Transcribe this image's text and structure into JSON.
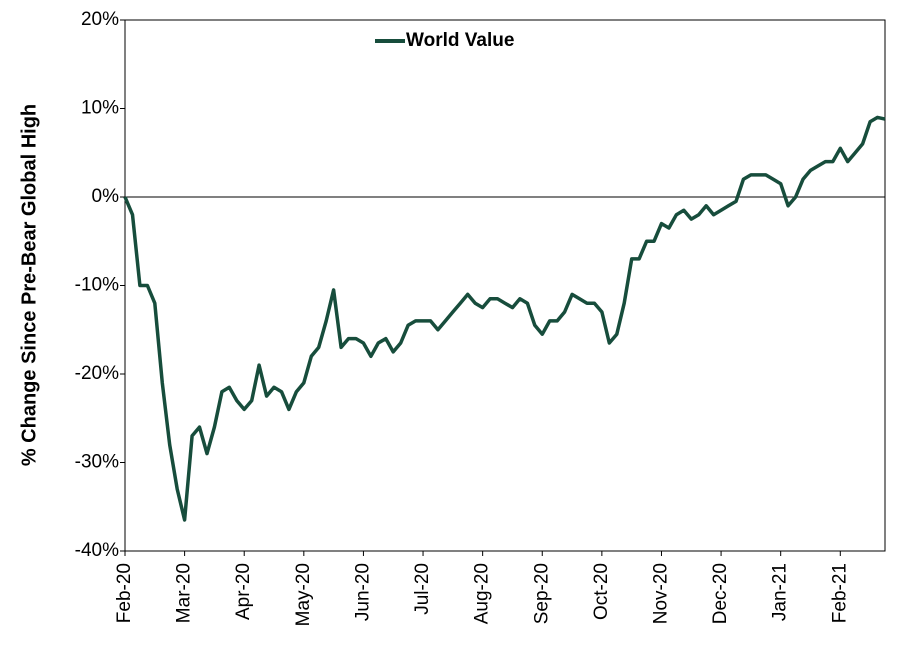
{
  "chart_data": {
    "type": "line",
    "y_label": "% Change Since Pre-Bear Global High",
    "categories": [
      "Feb-20",
      null,
      null,
      null,
      null,
      null,
      null,
      null,
      "Mar-20",
      null,
      null,
      null,
      null,
      null,
      null,
      null,
      "Apr-20",
      null,
      null,
      null,
      null,
      null,
      null,
      null,
      "May-20",
      null,
      null,
      null,
      null,
      null,
      null,
      null,
      "Jun-20",
      null,
      null,
      null,
      null,
      null,
      null,
      null,
      "Jul-20",
      null,
      null,
      null,
      null,
      null,
      null,
      null,
      "Aug-20",
      null,
      null,
      null,
      null,
      null,
      null,
      null,
      "Sep-20",
      null,
      null,
      null,
      null,
      null,
      null,
      null,
      "Oct-20",
      null,
      null,
      null,
      null,
      null,
      null,
      null,
      "Nov-20",
      null,
      null,
      null,
      null,
      null,
      null,
      null,
      "Dec-20",
      null,
      null,
      null,
      null,
      null,
      null,
      null,
      "Jan-21",
      null,
      null,
      null,
      null,
      null,
      null,
      null,
      "Feb-21",
      null,
      null,
      null,
      null,
      null,
      null
    ],
    "series": [
      {
        "name": "World Value",
        "color": "#174d3c",
        "values": [
          0,
          -2,
          -10,
          -10,
          -12,
          -21,
          -28,
          -33,
          -36.5,
          -27,
          -26,
          -29,
          -26,
          -22,
          -21.5,
          -23,
          -24,
          -23,
          -19,
          -22.5,
          -21.5,
          -22,
          -24,
          -22,
          -21,
          -18,
          -17,
          -14,
          -10.5,
          -17,
          -16,
          -16,
          -16.5,
          -18,
          -16.5,
          -16,
          -17.5,
          -16.5,
          -14.5,
          -14,
          -14,
          -14,
          -15,
          -14,
          -13,
          -12,
          -11,
          -12,
          -12.5,
          -11.5,
          -11.5,
          -12,
          -12.5,
          -11.5,
          -12,
          -14.5,
          -15.5,
          -14,
          -14,
          -13,
          -11,
          -11.5,
          -12,
          -12,
          -13,
          -16.5,
          -15.5,
          -12,
          -7,
          -7,
          -5,
          -5,
          -3,
          -3.5,
          -2,
          -1.5,
          -2.5,
          -2,
          -1,
          -2,
          -1.5,
          -1,
          -0.5,
          2,
          2.5,
          2.5,
          2.5,
          2,
          1.5,
          -1,
          0,
          2,
          3,
          3.5,
          4,
          4,
          5.5,
          4,
          5,
          6,
          8.5,
          9,
          8.8
        ]
      }
    ],
    "ylim": [
      -40,
      20
    ],
    "yticks": [
      {
        "value": -40,
        "label": "-40%"
      },
      {
        "value": -30,
        "label": "-30%"
      },
      {
        "value": -20,
        "label": "-20%"
      },
      {
        "value": -10,
        "label": "-10%"
      },
      {
        "value": 0,
        "label": "0%"
      },
      {
        "value": 10,
        "label": "10%"
      },
      {
        "value": 20,
        "label": "20%"
      }
    ],
    "legend": "top"
  }
}
